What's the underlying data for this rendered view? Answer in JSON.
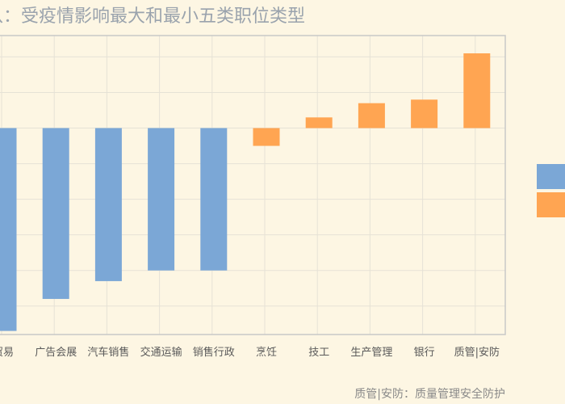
{
  "chart_data": {
    "type": "bar",
    "title": "八：受疫情影响最大和最小五类职位类型",
    "categories": [
      "贸易",
      "广告会展",
      "汽车销售",
      "交通运输",
      "销售行政",
      "烹饪",
      "技工",
      "生产管理",
      "银行",
      "质管|安防"
    ],
    "values": [
      -57,
      -48,
      -43,
      -40,
      -40,
      -5,
      3,
      7,
      8,
      21
    ],
    "series_groups": [
      "negative",
      "negative",
      "negative",
      "negative",
      "negative",
      "positive",
      "positive",
      "positive",
      "positive",
      "positive"
    ],
    "colors": {
      "negative": "#7ba7d6",
      "positive": "#ffa552"
    },
    "ylim": [
      -58,
      26
    ],
    "grid": true,
    "legend": "right",
    "footnote": "质管|安防：质量管理安全防护"
  }
}
